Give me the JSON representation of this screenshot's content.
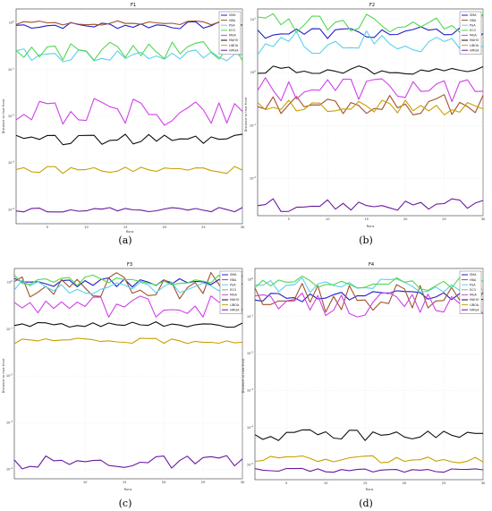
{
  "legend_labels": [
    "SMA",
    "HBA",
    "PSA",
    "ECO",
    "MGA",
    "MAHO",
    "LIBOA",
    "HMGA"
  ],
  "colors": {
    "SMA": "#1f1fc8",
    "HBA": "#a0522d",
    "PSA": "#5ad0f0",
    "ECO": "#50d850",
    "MGA": "#d040e8",
    "MAHO": "#101010",
    "LIBOA": "#c8a000",
    "HMGA": "#6a1aa0"
  },
  "chart_data": [
    {
      "type": "line",
      "panel_label": "(a)",
      "title": "F1",
      "xlabel": "Runs",
      "ylabel": "Distance to true front",
      "x_ticks": [
        5,
        10,
        15,
        20,
        25,
        30
      ],
      "y_ticks_exp": [
        -4,
        -3,
        -2,
        -1,
        0
      ],
      "y_scale": "log",
      "y_range_exp": [
        -4.3,
        0.3
      ],
      "series": [
        {
          "name": "SMA",
          "base": -0.05,
          "amp": 0.08
        },
        {
          "name": "HBA",
          "base": 0.0,
          "amp": 0.05
        },
        {
          "name": "PSA",
          "base": -0.7,
          "amp": 0.15
        },
        {
          "name": "ECO",
          "base": -0.6,
          "amp": 0.22
        },
        {
          "name": "MGA",
          "base": -1.9,
          "amp": 0.3
        },
        {
          "name": "MAHO",
          "base": -2.5,
          "amp": 0.12
        },
        {
          "name": "LIBOA",
          "base": -3.15,
          "amp": 0.08
        },
        {
          "name": "HMGA",
          "base": -4.0,
          "amp": 0.05
        }
      ]
    },
    {
      "type": "line",
      "panel_label": "(b)",
      "title": "F2",
      "xlabel": "Runs",
      "ylabel": "Distance to true front",
      "x_ticks": [
        5,
        10,
        15,
        20,
        25,
        30
      ],
      "y_ticks_exp": [
        -2,
        -1,
        0,
        1
      ],
      "y_scale": "log",
      "y_range_exp": [
        -2.7,
        1.2
      ],
      "series": [
        {
          "name": "SMA",
          "base": 0.75,
          "amp": 0.12
        },
        {
          "name": "HBA",
          "base": -0.6,
          "amp": 0.2
        },
        {
          "name": "PSA",
          "base": 0.55,
          "amp": 0.25
        },
        {
          "name": "ECO",
          "base": 0.95,
          "amp": 0.2
        },
        {
          "name": "MGA",
          "base": -0.3,
          "amp": 0.25
        },
        {
          "name": "MAHO",
          "base": 0.05,
          "amp": 0.08
        },
        {
          "name": "LIBOA",
          "base": -0.65,
          "amp": 0.15
        },
        {
          "name": "HMGA",
          "base": -2.5,
          "amp": 0.12
        }
      ]
    },
    {
      "type": "line",
      "panel_label": "(c)",
      "title": "F3",
      "xlabel": "Runs",
      "ylabel": "Distance to true front",
      "x_ticks": [
        10,
        15,
        20,
        25,
        30
      ],
      "y_ticks_exp": [
        -4,
        -3,
        -2,
        -1,
        0
      ],
      "y_scale": "log",
      "y_range_exp": [
        -4.2,
        0.3
      ],
      "series": [
        {
          "name": "SMA",
          "base": 0.0,
          "amp": 0.1
        },
        {
          "name": "HBA",
          "base": -0.05,
          "amp": 0.3
        },
        {
          "name": "PSA",
          "base": -0.1,
          "amp": 0.15
        },
        {
          "name": "ECO",
          "base": 0.05,
          "amp": 0.12
        },
        {
          "name": "MGA",
          "base": -0.5,
          "amp": 0.25
        },
        {
          "name": "MAHO",
          "base": -0.9,
          "amp": 0.06
        },
        {
          "name": "LIBOA",
          "base": -1.25,
          "amp": 0.06
        },
        {
          "name": "HMGA",
          "base": -3.85,
          "amp": 0.15
        }
      ]
    },
    {
      "type": "line",
      "panel_label": "(d)",
      "title": "F4",
      "xlabel": "Runs",
      "ylabel": "Distance to true front",
      "x_ticks": [
        5,
        10,
        15,
        20,
        25,
        30
      ],
      "y_ticks_exp": [
        -5,
        -4,
        -3,
        -2,
        -1,
        0
      ],
      "y_scale": "log",
      "y_range_exp": [
        -5.4,
        0.3
      ],
      "series": [
        {
          "name": "SMA",
          "base": -0.45,
          "amp": 0.15
        },
        {
          "name": "HBA",
          "base": -0.5,
          "amp": 0.4
        },
        {
          "name": "PSA",
          "base": -0.15,
          "amp": 0.2
        },
        {
          "name": "ECO",
          "base": -0.1,
          "amp": 0.2
        },
        {
          "name": "MGA",
          "base": -0.7,
          "amp": 0.35
        },
        {
          "name": "MAHO",
          "base": -4.2,
          "amp": 0.15
        },
        {
          "name": "LIBOA",
          "base": -4.85,
          "amp": 0.1
        },
        {
          "name": "HMGA",
          "base": -5.15,
          "amp": 0.06
        }
      ]
    }
  ]
}
